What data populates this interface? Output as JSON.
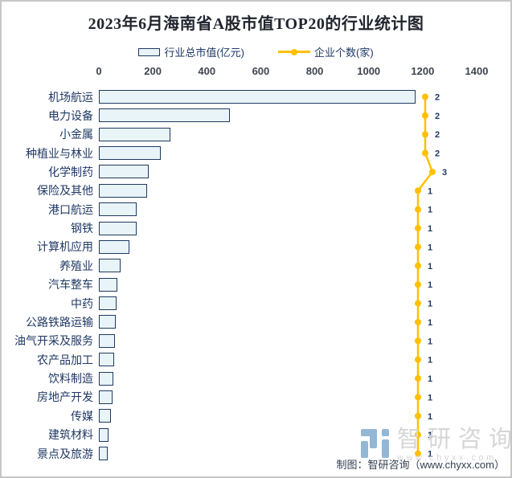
{
  "title": "2023年6月海南省A股市值TOP20的行业统计图",
  "legend": {
    "bar_label": "行业总市值(亿元)",
    "line_label": "企业个数(家)"
  },
  "footer": {
    "credit": "制图：智研咨询（www.chyxx.com）"
  },
  "watermark": {
    "brand": "智研咨询",
    "url": "www.chyxx.com",
    "logo": "chyxx-logo"
  },
  "colors": {
    "bar_fill": "#e9f4f8",
    "bar_border": "#1e3a5f",
    "line": "#ffc000",
    "label_text": "#1f3864",
    "axis_text": "#3f4450",
    "title_text": "#22252e",
    "watermark_text": "#d6d6d6",
    "logo_blue": "#6f9fc8",
    "credit_text": "#333f50"
  },
  "chart_data": {
    "type": "bar",
    "orientation": "horizontal",
    "title": "2023年6月海南省A股市值TOP20的行业统计图",
    "categories": [
      "机场航运",
      "电力设备",
      "小金属",
      "种植业与林业",
      "化学制药",
      "保险及其他",
      "港口航运",
      "钢铁",
      "计算机应用",
      "养殖业",
      "汽车整车",
      "中药",
      "公路铁路运输",
      "油气开采及服务",
      "农产品加工",
      "饮料制造",
      "房地产开发",
      "传媒",
      "建筑材料",
      "景点及旅游"
    ],
    "series": [
      {
        "name": "行业总市值(亿元)",
        "type": "bar",
        "values": [
          1175,
          487,
          265,
          230,
          184,
          178,
          140,
          139,
          112,
          79,
          69,
          65,
          62,
          61,
          56,
          53,
          52,
          45,
          36,
          34
        ]
      },
      {
        "name": "企业个数(家)",
        "type": "line",
        "values": [
          2,
          2,
          2,
          2,
          3,
          1,
          1,
          1,
          1,
          1,
          1,
          1,
          1,
          1,
          1,
          1,
          1,
          1,
          1,
          1
        ]
      }
    ],
    "xlabel": "",
    "ylabel": "",
    "xlim": [
      0,
      1400
    ],
    "x_ticks": [
      0,
      200,
      400,
      600,
      800,
      1000,
      1200,
      1400
    ],
    "grid": false,
    "legend_position": "top",
    "value_axis_position": "top",
    "data_labels_series": "企业个数(家)"
  }
}
